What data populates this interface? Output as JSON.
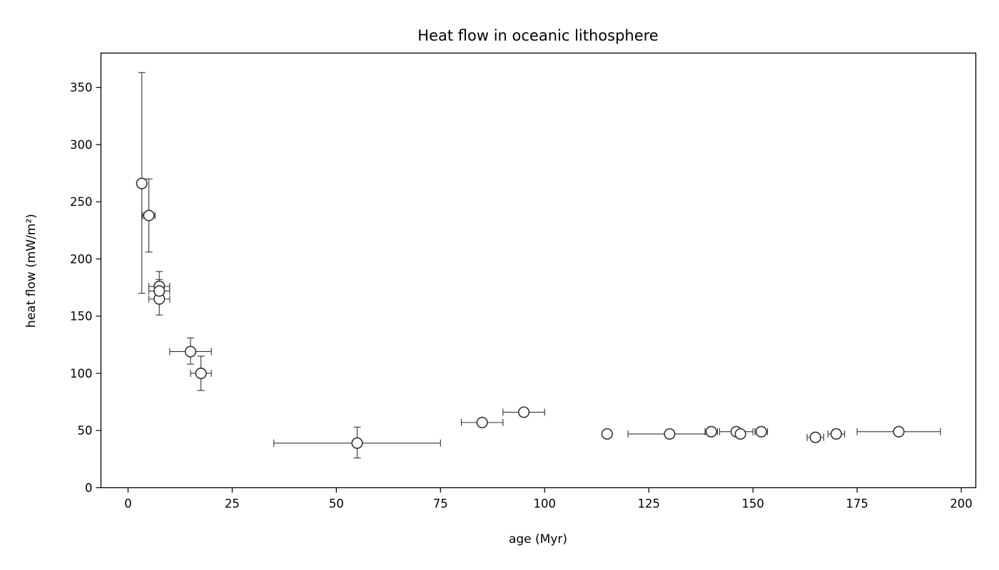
{
  "chart_data": {
    "type": "scatter",
    "title": "Heat flow in oceanic lithosphere",
    "xlabel": "age (Myr)",
    "ylabel": "heat flow (mW/m²)",
    "xlim": [
      -6.5,
      203.5
    ],
    "ylim": [
      0,
      380
    ],
    "xticks": [
      0,
      25,
      50,
      75,
      100,
      125,
      150,
      175,
      200
    ],
    "yticks": [
      0,
      50,
      100,
      150,
      200,
      250,
      300,
      350
    ],
    "grid": false,
    "legend": "none",
    "marker": "open-circle",
    "points": [
      {
        "x": 3.3,
        "y": 266,
        "xerr": 0,
        "yerr_low": 96,
        "yerr_high": 97
      },
      {
        "x": 5,
        "y": 238,
        "xerr": 1.5,
        "yerr_low": 32,
        "yerr_high": 32
      },
      {
        "x": 7.5,
        "y": 165,
        "xerr": 2.5,
        "yerr_low": 14,
        "yerr_high": 14
      },
      {
        "x": 7.5,
        "y": 176,
        "xerr": 2.5,
        "yerr_low": 6,
        "yerr_high": 6
      },
      {
        "x": 7.5,
        "y": 172,
        "xerr": 2.5,
        "yerr_low": 7,
        "yerr_high": 17
      },
      {
        "x": 15,
        "y": 119,
        "xerr": 5,
        "yerr_low": 11,
        "yerr_high": 12
      },
      {
        "x": 17.5,
        "y": 100,
        "xerr": 2.5,
        "yerr_low": 15,
        "yerr_high": 15
      },
      {
        "x": 55,
        "y": 39,
        "xerr": 20,
        "yerr_low": 13,
        "yerr_high": 14
      },
      {
        "x": 85,
        "y": 57,
        "xerr": 5,
        "yerr_low": 3,
        "yerr_high": 3
      },
      {
        "x": 95,
        "y": 66,
        "xerr": 5,
        "yerr_low": 2,
        "yerr_high": 2
      },
      {
        "x": 115,
        "y": 47,
        "xerr": 0,
        "yerr_low": 3,
        "yerr_high": 3
      },
      {
        "x": 130,
        "y": 47,
        "xerr": 10,
        "yerr_low": 1,
        "yerr_high": 1
      },
      {
        "x": 140,
        "y": 49,
        "xerr": 1.5,
        "yerr_low": 4,
        "yerr_high": 4
      },
      {
        "x": 146,
        "y": 49,
        "xerr": 4,
        "yerr_low": 1,
        "yerr_high": 1
      },
      {
        "x": 147,
        "y": 47,
        "xerr": 0,
        "yerr_low": 3,
        "yerr_high": 3
      },
      {
        "x": 152,
        "y": 49,
        "xerr": 1.5,
        "yerr_low": 4,
        "yerr_high": 4
      },
      {
        "x": 165,
        "y": 44,
        "xerr": 2,
        "yerr_low": 4,
        "yerr_high": 4
      },
      {
        "x": 170,
        "y": 47,
        "xerr": 2,
        "yerr_low": 4,
        "yerr_high": 4
      },
      {
        "x": 185,
        "y": 49,
        "xerr": 10,
        "yerr_low": 1,
        "yerr_high": 1
      }
    ]
  }
}
